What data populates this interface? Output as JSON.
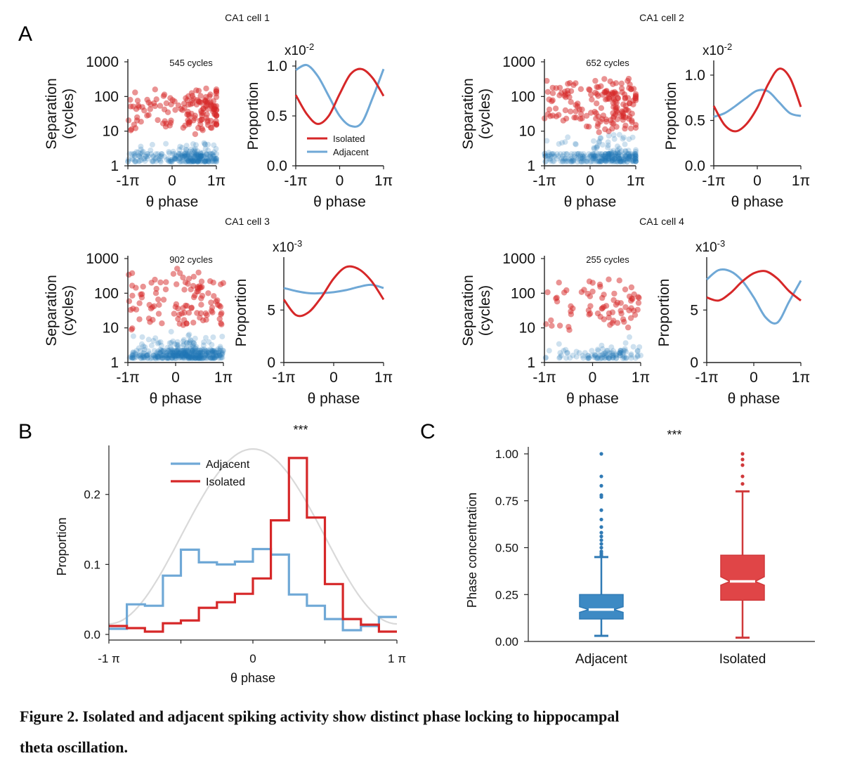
{
  "colors": {
    "isolated": "#d62728",
    "adjacent": "#6fa8d6",
    "adjacent_dark": "#1f77b4",
    "theta": "#d9d9d9"
  },
  "panel_letters": {
    "A": "A",
    "B": "B",
    "C": "C"
  },
  "caption": {
    "line1": "Figure 2. Isolated and adjacent spiking activity show distinct phase locking to hippocampal",
    "line2": "theta oscillation."
  },
  "chart_data": [
    {
      "id": "cell1-scatter",
      "type": "scatter",
      "title": "CA1 cell 1",
      "annotation": "545 cycles",
      "xlabel": "θ phase",
      "ylabel": [
        "Separation",
        "(cycles)"
      ],
      "yscale": "log",
      "ylim": [
        1,
        1000
      ],
      "yticks": [
        "1",
        "10",
        "100",
        "1000"
      ],
      "xticks": [
        "-1π",
        "0",
        "1π"
      ],
      "series": [
        {
          "name": "Isolated",
          "n": 150,
          "ymin": 8,
          "ymax": 180,
          "peak": 0.7
        },
        {
          "name": "Adjacent",
          "n": 260,
          "ymin": 1.3,
          "ymax": 6,
          "peak": 0.5
        }
      ]
    },
    {
      "id": "cell1-prop",
      "type": "line",
      "xlabel": "θ phase",
      "ylabel": "Proportion",
      "multiplier": "x10",
      "multiplier_exp": "-2",
      "ylim": [
        0,
        1.0
      ],
      "yticks": [
        "0.0",
        "0.5",
        "1.0"
      ],
      "xticks": [
        "-1π",
        "0",
        "1π"
      ],
      "legend": [
        "Isolated",
        "Adjacent"
      ],
      "series": [
        {
          "name": "Isolated",
          "x": [
            -1,
            -0.75,
            -0.5,
            -0.25,
            0,
            0.25,
            0.5,
            0.75,
            1
          ],
          "values": [
            0.71,
            0.52,
            0.42,
            0.5,
            0.72,
            0.92,
            0.97,
            0.88,
            0.7
          ]
        },
        {
          "name": "Adjacent",
          "x": [
            -1,
            -0.75,
            -0.5,
            -0.25,
            0,
            0.25,
            0.5,
            0.75,
            1
          ],
          "values": [
            0.96,
            1.01,
            0.9,
            0.7,
            0.5,
            0.4,
            0.43,
            0.68,
            0.97
          ]
        }
      ]
    },
    {
      "id": "cell2-scatter",
      "type": "scatter",
      "title": "CA1 cell 2",
      "annotation": "652 cycles",
      "xlabel": "θ phase",
      "ylabel": [
        "Separation",
        "(cycles)"
      ],
      "yscale": "log",
      "ylim": [
        1,
        1000
      ],
      "yticks": [
        "1",
        "10",
        "100",
        "1000"
      ],
      "xticks": [
        "-1π",
        "0",
        "1π"
      ],
      "series": [
        {
          "name": "Isolated",
          "n": 170,
          "ymin": 8,
          "ymax": 400,
          "peak": 0.6
        },
        {
          "name": "Adjacent",
          "n": 300,
          "ymin": 1.3,
          "ymax": 10,
          "peak": 0.6
        }
      ]
    },
    {
      "id": "cell2-prop",
      "type": "line",
      "xlabel": "θ phase",
      "ylabel": "Proportion",
      "multiplier": "x10",
      "multiplier_exp": "-2",
      "ylim": [
        0,
        1.1
      ],
      "yticks": [
        "0.0",
        "0.5",
        "1.0"
      ],
      "xticks": [
        "-1π",
        "0",
        "1π"
      ],
      "series": [
        {
          "name": "Isolated",
          "x": [
            -1,
            -0.75,
            -0.5,
            -0.25,
            0,
            0.25,
            0.5,
            0.75,
            1
          ],
          "values": [
            0.66,
            0.45,
            0.38,
            0.46,
            0.64,
            0.9,
            1.07,
            0.97,
            0.65
          ]
        },
        {
          "name": "Adjacent",
          "x": [
            -1,
            -0.75,
            -0.5,
            -0.25,
            0,
            0.25,
            0.5,
            0.75,
            1
          ],
          "values": [
            0.54,
            0.58,
            0.66,
            0.75,
            0.83,
            0.82,
            0.7,
            0.58,
            0.55
          ]
        }
      ]
    },
    {
      "id": "cell3-scatter",
      "type": "scatter",
      "title": "CA1 cell 3",
      "annotation": "902 cycles",
      "xlabel": "θ phase",
      "ylabel": [
        "Separation",
        "(cycles)"
      ],
      "yscale": "log",
      "ylim": [
        1,
        1000
      ],
      "yticks": [
        "1",
        "10",
        "100",
        "1000"
      ],
      "xticks": [
        "-1π",
        "0",
        "1π"
      ],
      "series": [
        {
          "name": "Isolated",
          "n": 110,
          "ymin": 8,
          "ymax": 600,
          "peak": 0.4
        },
        {
          "name": "Adjacent",
          "n": 420,
          "ymin": 1.3,
          "ymax": 8,
          "peak": 0.3
        }
      ]
    },
    {
      "id": "cell3-prop",
      "type": "line",
      "xlabel": "θ phase",
      "ylabel": "Proportion",
      "multiplier": "x10",
      "multiplier_exp": "-3",
      "ylim": [
        0,
        9.5
      ],
      "yticks": [
        "0",
        "5"
      ],
      "xticks": [
        "-1π",
        "0",
        "1π"
      ],
      "series": [
        {
          "name": "Isolated",
          "x": [
            -1,
            -0.75,
            -0.5,
            -0.25,
            0,
            0.25,
            0.5,
            0.75,
            1
          ],
          "values": [
            6.0,
            4.5,
            4.8,
            6.2,
            8.0,
            9.1,
            8.9,
            7.8,
            6.0
          ]
        },
        {
          "name": "Adjacent",
          "x": [
            -1,
            -0.75,
            -0.5,
            -0.25,
            0,
            0.25,
            0.5,
            0.75,
            1
          ],
          "values": [
            7.1,
            6.8,
            6.6,
            6.6,
            6.7,
            6.9,
            7.2,
            7.4,
            7.1
          ]
        }
      ]
    },
    {
      "id": "cell4-scatter",
      "type": "scatter",
      "title": "CA1 cell 4",
      "annotation": "255 cycles",
      "xlabel": "θ phase",
      "ylabel": [
        "Separation",
        "(cycles)"
      ],
      "yscale": "log",
      "ylim": [
        1,
        1000
      ],
      "yticks": [
        "1",
        "10",
        "100",
        "1000"
      ],
      "xticks": [
        "-1π",
        "0",
        "1π"
      ],
      "series": [
        {
          "name": "Isolated",
          "n": 75,
          "ymin": 8,
          "ymax": 300,
          "peak": 0.4
        },
        {
          "name": "Adjacent",
          "n": 110,
          "ymin": 1.3,
          "ymax": 8,
          "peak": 0.3
        }
      ]
    },
    {
      "id": "cell4-prop",
      "type": "line",
      "xlabel": "θ phase",
      "ylabel": "Proportion",
      "multiplier": "x10",
      "multiplier_exp": "-3",
      "ylim": [
        0,
        9.5
      ],
      "yticks": [
        "0",
        "5"
      ],
      "xticks": [
        "-1π",
        "0",
        "1π"
      ],
      "series": [
        {
          "name": "Isolated",
          "x": [
            -1,
            -0.75,
            -0.5,
            -0.25,
            0,
            0.25,
            0.5,
            0.75,
            1
          ],
          "values": [
            6.2,
            5.9,
            6.6,
            7.7,
            8.5,
            8.7,
            8.0,
            6.8,
            5.9
          ]
        },
        {
          "name": "Adjacent",
          "x": [
            -1,
            -0.75,
            -0.5,
            -0.25,
            0,
            0.25,
            0.5,
            0.75,
            1
          ],
          "values": [
            7.9,
            8.8,
            8.7,
            7.8,
            6.2,
            4.3,
            3.8,
            5.8,
            7.8
          ]
        }
      ]
    },
    {
      "id": "panelB",
      "type": "step",
      "xlabel": "θ phase",
      "ylabel": "Proportion",
      "ylim": [
        0,
        0.27
      ],
      "yticks": [
        "0.0",
        "0.1",
        "0.2"
      ],
      "xticks": [
        "-1 π",
        "0",
        "1 π"
      ],
      "significance": "***",
      "legend": [
        "Adjacent",
        "Isolated"
      ],
      "bins": 16,
      "series": [
        {
          "name": "Adjacent",
          "values": [
            0.008,
            0.043,
            0.041,
            0.084,
            0.121,
            0.103,
            0.1,
            0.104,
            0.122,
            0.114,
            0.057,
            0.041,
            0.022,
            0.006,
            0.012,
            0.025
          ]
        },
        {
          "name": "Isolated",
          "values": [
            0.012,
            0.009,
            0.004,
            0.016,
            0.02,
            0.038,
            0.046,
            0.058,
            0.08,
            0.163,
            0.252,
            0.167,
            0.072,
            0.022,
            0.014,
            0.004
          ]
        }
      ]
    },
    {
      "id": "panelC",
      "type": "box",
      "ylabel": "Phase concentration",
      "ylim": [
        0,
        1.05
      ],
      "yticks": [
        "0.00",
        "0.25",
        "0.50",
        "0.75",
        "1.00"
      ],
      "significance": "***",
      "categories": [
        "Adjacent",
        "Isolated"
      ],
      "boxes": [
        {
          "name": "Adjacent",
          "whisker_low": 0.03,
          "q1": 0.12,
          "median": 0.17,
          "q3": 0.25,
          "whisker_high": 0.45,
          "notch": [
            0.155,
            0.185
          ],
          "outliers": [
            0.46,
            0.47,
            0.48,
            0.5,
            0.52,
            0.54,
            0.56,
            0.58,
            0.61,
            0.65,
            0.7,
            0.77,
            0.78,
            0.83,
            0.88,
            1.0
          ]
        },
        {
          "name": "Isolated",
          "whisker_low": 0.02,
          "q1": 0.22,
          "median": 0.32,
          "q3": 0.46,
          "whisker_high": 0.8,
          "notch": [
            0.3,
            0.345
          ],
          "outliers": [
            0.84,
            0.88,
            0.94,
            0.97,
            1.0
          ]
        }
      ]
    }
  ]
}
